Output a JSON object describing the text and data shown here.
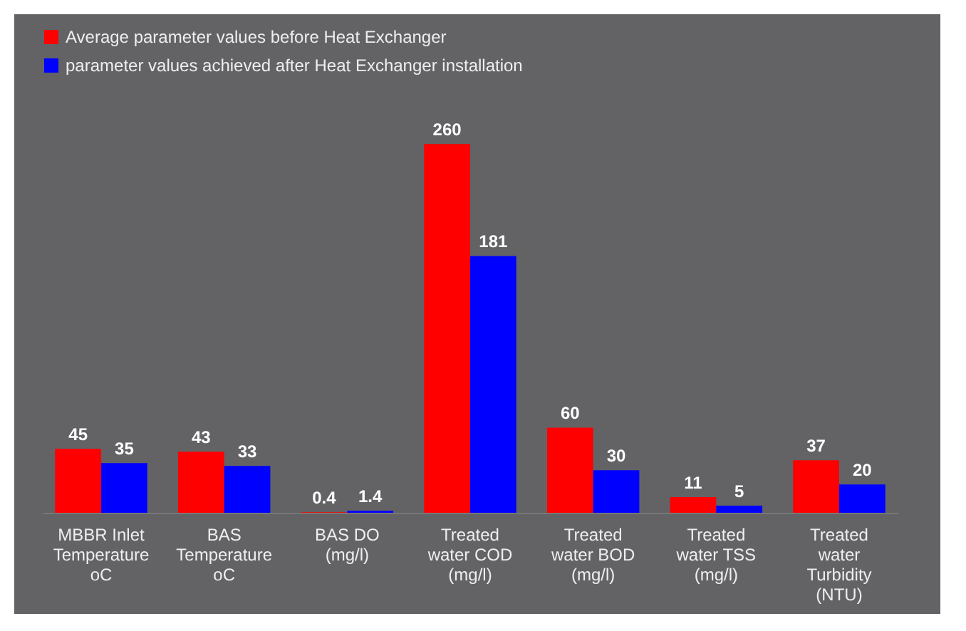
{
  "chart_data": {
    "type": "bar",
    "categories": [
      "MBBR Inlet Temperature oC",
      "BAS Temperature oC",
      "BAS DO (mg/l)",
      "Treated water COD (mg/l)",
      "Treated water BOD (mg/l)",
      "Treated water TSS (mg/l)",
      "Treated water Turbidity (NTU)"
    ],
    "series": [
      {
        "name": "Average parameter values before Heat Exchanger",
        "color": "#ff0000",
        "values": [
          45,
          43,
          0.4,
          260,
          60,
          11,
          37
        ]
      },
      {
        "name": "parameter values achieved  after Heat Exchanger installation",
        "color": "#0000ff",
        "values": [
          35,
          33,
          1.4,
          181,
          30,
          5,
          20
        ]
      }
    ],
    "data_labels": true,
    "legend": "top"
  }
}
